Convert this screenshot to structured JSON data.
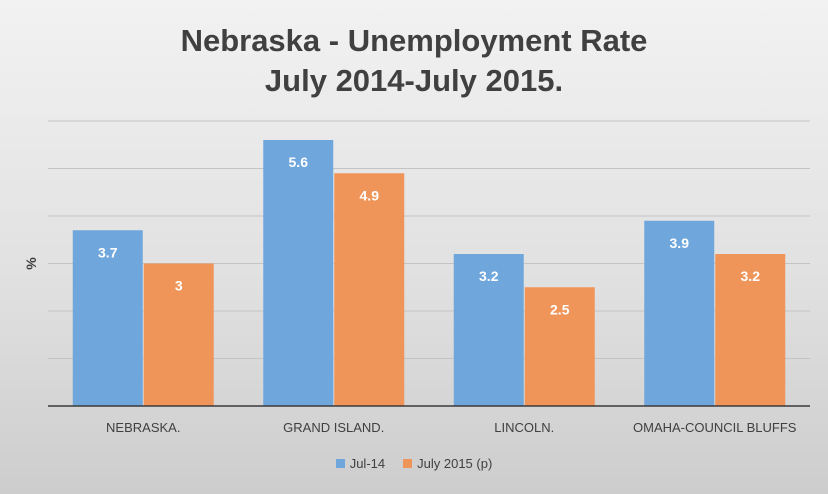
{
  "chart_data": {
    "type": "bar",
    "title_line1": "Nebraska - Unemployment Rate",
    "title_line2": "July 2014-July 2015.",
    "ylabel": "%",
    "xlabel": "",
    "categories": [
      "NEBRASKA.",
      "GRAND ISLAND.",
      "LINCOLN.",
      "OMAHA-COUNCIL BLUFFS"
    ],
    "series": [
      {
        "name": "Jul-14",
        "color": "#6fa7dc",
        "values": [
          3.7,
          5.6,
          3.2,
          3.9
        ],
        "labels": [
          "3.7",
          "5.6",
          "3.2",
          "3.9"
        ]
      },
      {
        "name": "July 2015 (p)",
        "color": "#f0955a",
        "values": [
          3,
          4.9,
          2.5,
          3.2
        ],
        "labels": [
          "3",
          "4.9",
          "2.5",
          "3.2"
        ]
      }
    ],
    "ylim": [
      0,
      6
    ],
    "grid": true,
    "legend_position": "bottom"
  }
}
